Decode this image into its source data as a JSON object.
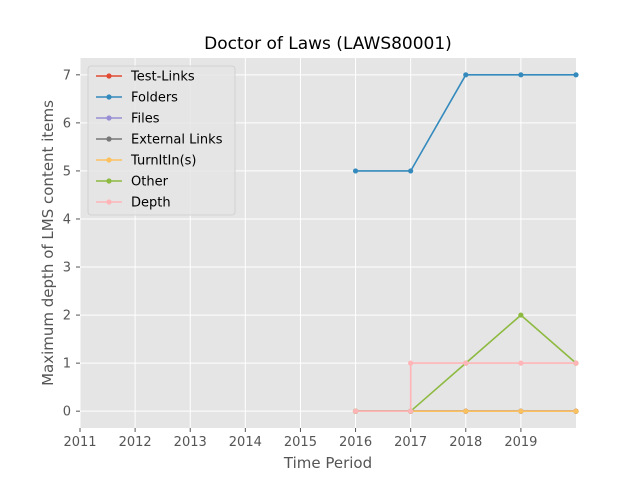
{
  "chart_data": {
    "type": "line",
    "title": "Doctor of Laws (LAWS80001)",
    "xlabel": "Time Period",
    "ylabel": "Maximum depth of LMS content items",
    "xlim": [
      2011,
      2020
    ],
    "ylim": [
      -0.35,
      7.35
    ],
    "x_ticks": [
      "2011",
      "2012",
      "2013",
      "2014",
      "2015",
      "2016",
      "2017",
      "2018",
      "2019"
    ],
    "y_ticks": [
      "0",
      "1",
      "2",
      "3",
      "4",
      "5",
      "6",
      "7"
    ],
    "grid": true,
    "legend_position": "top-left",
    "series": [
      {
        "name": "Test-Links",
        "color": "#E24A33",
        "step": false,
        "points": [
          [
            2016,
            0
          ],
          [
            2017,
            0
          ],
          [
            2018,
            0
          ],
          [
            2019,
            0
          ],
          [
            2020,
            0
          ]
        ]
      },
      {
        "name": "Folders",
        "color": "#348ABD",
        "step": false,
        "points": [
          [
            2016,
            5
          ],
          [
            2017,
            5
          ],
          [
            2018,
            7
          ],
          [
            2019,
            7
          ],
          [
            2020,
            7
          ]
        ]
      },
      {
        "name": "Files",
        "color": "#988ED5",
        "step": false,
        "points": [
          [
            2016,
            0
          ],
          [
            2017,
            0
          ],
          [
            2018,
            0
          ],
          [
            2019,
            0
          ],
          [
            2020,
            0
          ]
        ]
      },
      {
        "name": "External Links",
        "color": "#777777",
        "step": false,
        "points": [
          [
            2016,
            0
          ],
          [
            2017,
            0
          ],
          [
            2018,
            0
          ],
          [
            2019,
            0
          ],
          [
            2020,
            0
          ]
        ]
      },
      {
        "name": "TurnItIn(s)",
        "color": "#FBC15E",
        "step": false,
        "points": [
          [
            2016,
            0
          ],
          [
            2017,
            0
          ],
          [
            2018,
            0
          ],
          [
            2019,
            0
          ],
          [
            2020,
            0
          ]
        ]
      },
      {
        "name": "Other",
        "color": "#8EBA42",
        "step": false,
        "points": [
          [
            2016,
            0
          ],
          [
            2017,
            0
          ],
          [
            2018,
            1
          ],
          [
            2019,
            2
          ],
          [
            2020,
            1
          ]
        ]
      },
      {
        "name": "Depth",
        "color": "#FFB5B8",
        "step": true,
        "points": [
          [
            2016,
            0
          ],
          [
            2017,
            0
          ],
          [
            2017,
            1
          ],
          [
            2018,
            1
          ],
          [
            2019,
            1
          ],
          [
            2020,
            1
          ]
        ]
      }
    ]
  }
}
